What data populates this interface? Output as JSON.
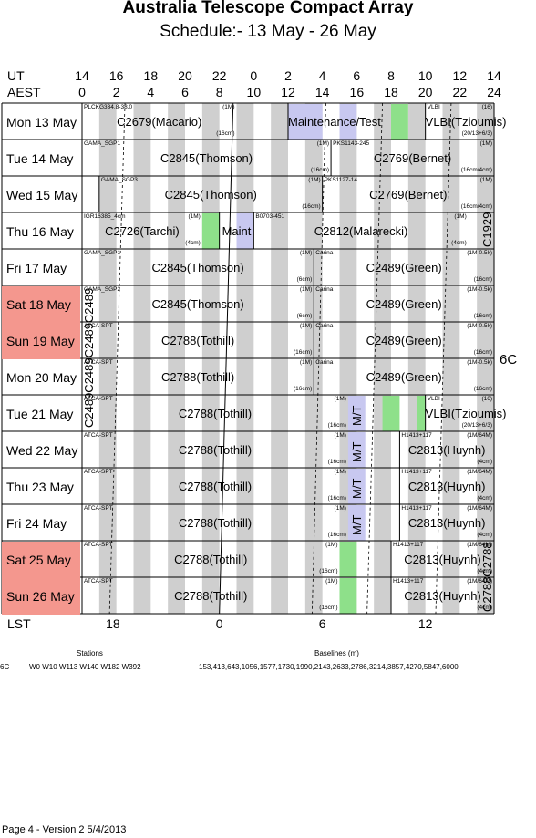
{
  "title": "Australia Telescope Compact Array",
  "subtitle": "Schedule:- 13 May - 26 May",
  "axes": {
    "ut_label": "UT",
    "aest_label": "AEST",
    "lst_label": "LST",
    "ut_ticks": [
      "14",
      "16",
      "18",
      "20",
      "22",
      "0",
      "2",
      "4",
      "6",
      "8",
      "10",
      "12",
      "14"
    ],
    "aest_ticks": [
      "0",
      "2",
      "4",
      "6",
      "8",
      "10",
      "12",
      "14",
      "16",
      "18",
      "20",
      "22",
      "24"
    ],
    "lst_ticks": [
      "18",
      "0",
      "6",
      "12"
    ]
  },
  "config_label": "6C",
  "days": [
    {
      "label": "Mon 13 May",
      "weekend": false
    },
    {
      "label": "Tue  14 May",
      "weekend": false
    },
    {
      "label": "Wed 15 May",
      "weekend": false
    },
    {
      "label": "Thu  16 May",
      "weekend": false
    },
    {
      "label": "Fri    17 May",
      "weekend": false
    },
    {
      "label": "Sat   18 May",
      "weekend": true
    },
    {
      "label": "Sun  19 May",
      "weekend": true
    },
    {
      "label": "Mon 20 May",
      "weekend": false
    },
    {
      "label": "Tue  21 May",
      "weekend": false
    },
    {
      "label": "Wed 22 May",
      "weekend": false
    },
    {
      "label": "Thu  23 May",
      "weekend": false
    },
    {
      "label": "Fri    24 May",
      "weekend": false
    },
    {
      "label": "Sat   25 May",
      "weekend": true
    },
    {
      "label": "Sun  26 May",
      "weekend": true
    }
  ],
  "blocks": [
    {
      "row": 0,
      "start": 0.0,
      "end": 9.0,
      "name": "C2679(Macario)",
      "src": "PLCKG334.8-38.0",
      "band": "(1M)",
      "band2": "(16cm)"
    },
    {
      "row": 0,
      "start": 12.0,
      "end": 16.0,
      "name": "Maintenance/Test",
      "src": "",
      "band": "",
      "band2": ""
    },
    {
      "row": 0,
      "start": 20.0,
      "end": 24.0,
      "name": "VLBI(Tzioumis)",
      "src": "VLBI",
      "band": "(16)",
      "band2": "(20/13+6/3)"
    },
    {
      "row": 1,
      "start": 0.0,
      "end": 14.5,
      "name": "C2845(Thomson)",
      "src": "GAMA_SGP1",
      "band": "(1M)",
      "band2": "(16cm)"
    },
    {
      "row": 1,
      "start": 14.5,
      "end": 24.0,
      "name": "C2769(Bernet)",
      "src": "PKS1143-245",
      "band": "(1M)",
      "band2": "(16cm/4cm)"
    },
    {
      "row": 2,
      "start": 1.0,
      "end": 14.0,
      "name": "C2845(Thomson)",
      "src": "GAMA_SGP3",
      "band": "(1M)",
      "band2": "(16cm)"
    },
    {
      "row": 2,
      "start": 14.0,
      "end": 24.0,
      "name": "C2769(Bernet)",
      "src": "PKS1127-14",
      "band": "(1M)",
      "band2": "(16cm/4cm)"
    },
    {
      "row": 3,
      "start": 0.0,
      "end": 7.0,
      "name": "C2726(Tarchi)",
      "src": "IGR16385_4cm",
      "band": "(1M)",
      "band2": "(4cm)"
    },
    {
      "row": 3,
      "start": 8.0,
      "end": 10.0,
      "name": "Maint",
      "src": "",
      "band": "",
      "band2": ""
    },
    {
      "row": 3,
      "start": 10.0,
      "end": 22.5,
      "name": "C2812(Malarecki)",
      "src": "B0703-451",
      "band": "(1M)",
      "band2": "(4cm)"
    },
    {
      "row": 4,
      "start": 0.0,
      "end": 13.5,
      "name": "C2845(Thomson)",
      "src": "GAMA_SGP1",
      "band": "(1M)",
      "band2": "(6cm)"
    },
    {
      "row": 4,
      "start": 13.5,
      "end": 24.0,
      "name": "C2489(Green)",
      "src": "Carina",
      "band": "(1M-0.5k)",
      "band2": "(16cm)"
    },
    {
      "row": 5,
      "start": 0.0,
      "end": 13.5,
      "name": "C2845(Thomson)",
      "src": "GAMA_SGP2",
      "band": "(1M)",
      "band2": "(6cm)"
    },
    {
      "row": 5,
      "start": 13.5,
      "end": 24.0,
      "name": "C2489(Green)",
      "src": "Carina",
      "band": "(1M-0.5k)",
      "band2": "(16cm)"
    },
    {
      "row": 6,
      "start": 0.0,
      "end": 13.5,
      "name": "C2788(Tothill)",
      "src": "ATCA-SPT",
      "band": "(1M)",
      "band2": "(16cm)"
    },
    {
      "row": 6,
      "start": 13.5,
      "end": 24.0,
      "name": "C2489(Green)",
      "src": "Carina",
      "band": "(1M-0.5k)",
      "band2": "(16cm)"
    },
    {
      "row": 7,
      "start": 0.0,
      "end": 13.5,
      "name": "C2788(Tothill)",
      "src": "ATCA-SPT",
      "band": "(1M)",
      "band2": "(16cm)"
    },
    {
      "row": 7,
      "start": 13.5,
      "end": 24.0,
      "name": "C2489(Green)",
      "src": "Carina",
      "band": "(1M-0.5k)",
      "band2": "(16cm)"
    },
    {
      "row": 8,
      "start": 0.0,
      "end": 15.5,
      "name": "C2788(Tothill)",
      "src": "ATCA-SPT",
      "band": "(1M)",
      "band2": "(16cm)"
    },
    {
      "row": 8,
      "start": 20.0,
      "end": 24.0,
      "name": "VLBI(Tzioumis)",
      "src": "VLBI",
      "band": "(16)",
      "band2": "(20/13+6/3)"
    },
    {
      "row": 9,
      "start": 0.0,
      "end": 15.5,
      "name": "C2788(Tothill)",
      "src": "ATCA-SPT",
      "band": "(1M)",
      "band2": "(16cm)"
    },
    {
      "row": 9,
      "start": 18.5,
      "end": 24.0,
      "name": "C2813(Huynh)",
      "src": "H1413+117",
      "band": "(1M/64M)",
      "band2": "(4cm)"
    },
    {
      "row": 10,
      "start": 0.0,
      "end": 15.5,
      "name": "C2788(Tothill)",
      "src": "ATCA-SPT",
      "band": "(1M)",
      "band2": "(16cm)"
    },
    {
      "row": 10,
      "start": 18.5,
      "end": 24.0,
      "name": "C2813(Huynh)",
      "src": "H1413+117",
      "band": "(1M/64M)",
      "band2": "(4cm)"
    },
    {
      "row": 11,
      "start": 0.0,
      "end": 15.5,
      "name": "C2788(Tothill)",
      "src": "ATCA-SPT",
      "band": "(1M)",
      "band2": "(16cm)"
    },
    {
      "row": 11,
      "start": 18.5,
      "end": 24.0,
      "name": "C2813(Huynh)",
      "src": "H1413+117",
      "band": "(1M/64M)",
      "band2": "(4cm)"
    },
    {
      "row": 12,
      "start": 0.0,
      "end": 15.0,
      "name": "C2788(Tothill)",
      "src": "ATCA-SPT",
      "band": "(1M)",
      "band2": "(16cm)"
    },
    {
      "row": 12,
      "start": 18.0,
      "end": 24.0,
      "name": "C2813(Huynh)",
      "src": "H1413+117",
      "band": "(1M/64M)",
      "band2": "(4cm)"
    },
    {
      "row": 13,
      "start": 0.0,
      "end": 15.0,
      "name": "C2788(Tothill)",
      "src": "ATCA-SPT",
      "band": "(1M)",
      "band2": "(16cm)"
    },
    {
      "row": 13,
      "start": 18.0,
      "end": 24.0,
      "name": "C2813(Huynh)",
      "src": "H1413+117",
      "band": "(1M/64M)",
      "band2": "(4cm)"
    }
  ],
  "highlights": [
    {
      "row": 0,
      "start": 12.0,
      "end": 14.0,
      "color": "#c8c8f0"
    },
    {
      "row": 0,
      "start": 15.0,
      "end": 16.0,
      "color": "#c8c8f0"
    },
    {
      "row": 0,
      "start": 18.0,
      "end": 19.0,
      "color": "#8ee08a"
    },
    {
      "row": 3,
      "start": 7.0,
      "end": 8.0,
      "color": "#8ee08a"
    },
    {
      "row": 3,
      "start": 9.0,
      "end": 10.0,
      "color": "#c8c8f0"
    },
    {
      "row": 8,
      "start": 15.5,
      "end": 16.5,
      "color": "#c8c8f0"
    },
    {
      "row": 8,
      "start": 17.5,
      "end": 18.5,
      "color": "#8ee08a"
    },
    {
      "row": 8,
      "start": 19.5,
      "end": 20.0,
      "color": "#8ee08a"
    },
    {
      "row": 9,
      "start": 15.5,
      "end": 16.5,
      "color": "#c8c8f0"
    },
    {
      "row": 10,
      "start": 15.5,
      "end": 16.5,
      "color": "#c8c8f0"
    },
    {
      "row": 11,
      "start": 15.5,
      "end": 16.5,
      "color": "#c8c8f0"
    },
    {
      "row": 12,
      "start": 15.0,
      "end": 16.0,
      "color": "#8ee08a"
    },
    {
      "row": 13,
      "start": 15.0,
      "end": 16.0,
      "color": "#8ee08a"
    }
  ],
  "vertical_labels": [
    {
      "text": "M/T",
      "row": 8
    },
    {
      "text": "M/T",
      "row": 9
    },
    {
      "text": "M/T",
      "row": 10
    },
    {
      "text": "M/T",
      "row": 11
    }
  ],
  "side_labels": [
    {
      "text": "C1929"
    },
    {
      "text": "C2489C2489C2489C2489"
    },
    {
      "text": "C2788C2788"
    }
  ],
  "footer": {
    "stations_heading": "Stations",
    "baselines_heading": "Baselines (m)",
    "config": "6C",
    "stations": "W0 W10 W113 W140 W182 W392",
    "baselines": "153,413,643,1056,1577,1730,1990,2143,2633,2786,3214,3857,4270,5847,6000",
    "page": "Page 4 - Version 2  5/4/2013"
  }
}
